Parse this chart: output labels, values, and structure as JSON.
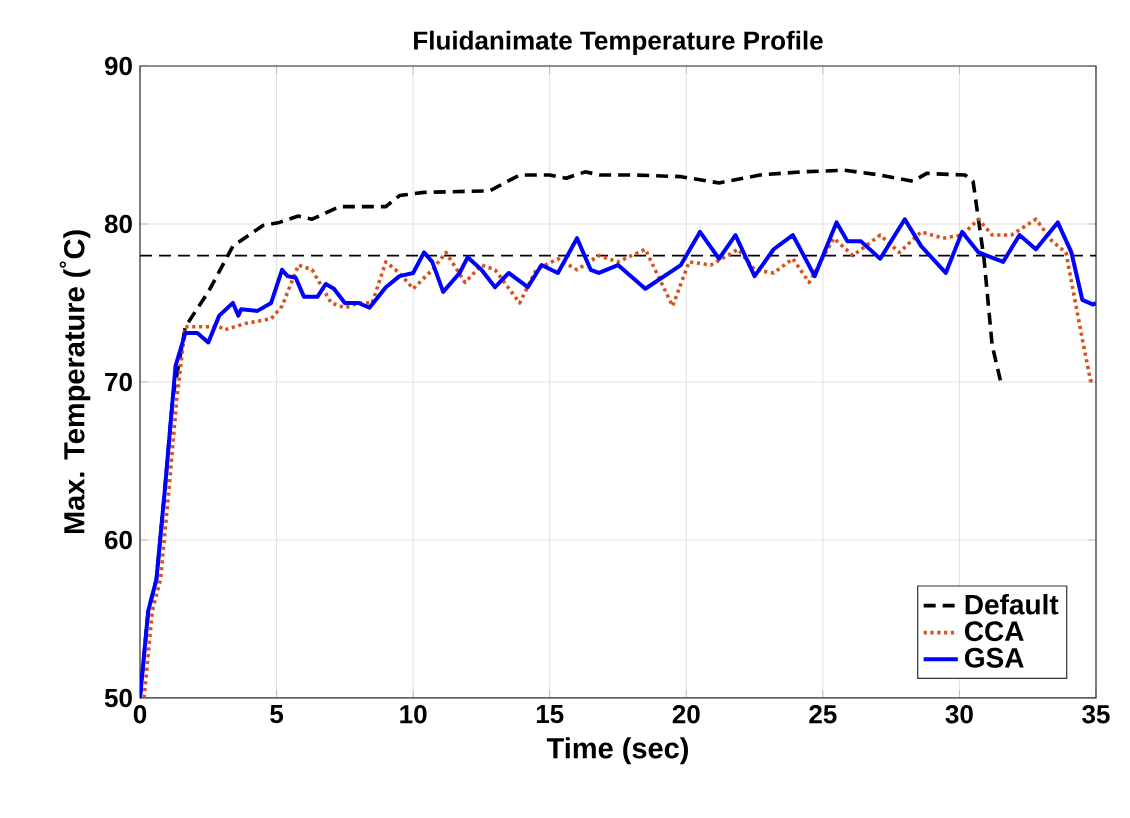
{
  "chart_data": {
    "type": "line",
    "title": "Fluidanimate Temperature Profile",
    "xlabel": "Time (sec)",
    "ylabel": "Max. Temperature ($^{°}$C)",
    "xlim": [
      0,
      35
    ],
    "ylim": [
      50,
      90
    ],
    "xticks": [
      0,
      5,
      10,
      15,
      20,
      25,
      30,
      35
    ],
    "yticks": [
      50,
      60,
      70,
      80,
      90
    ],
    "grid": true,
    "legend": "bottom right",
    "marker": "none",
    "ref_lines": [
      {
        "axis": "y",
        "value": 78,
        "color": "#000000",
        "line_style": "dashed"
      }
    ],
    "series": [
      {
        "name": "Default",
        "color": "#000000",
        "line_style": "dashed",
        "x": [
          0,
          0.3,
          0.6,
          0.9,
          1.2,
          1.66,
          2.5,
          3.4,
          4.5,
          5.1,
          5.8,
          6.3,
          7.3,
          9,
          9.5,
          10.4,
          12.8,
          13.9,
          15,
          15.6,
          16.3,
          16.84,
          18.06,
          19.77,
          21.2,
          22.7,
          24.2,
          25.8,
          27.1,
          28.3,
          28.8,
          30.2,
          30.5,
          30.9,
          31.2,
          31.5
        ],
        "values": [
          50,
          55.5,
          57.5,
          63,
          69,
          73.5,
          75.7,
          78.6,
          79.9,
          80.1,
          80.5,
          80.3,
          81.1,
          81.1,
          81.8,
          82,
          82.1,
          83.1,
          83.1,
          82.9,
          83.3,
          83.1,
          83.1,
          83,
          82.6,
          83.1,
          83.3,
          83.4,
          83.1,
          82.7,
          83.2,
          83.1,
          82.7,
          77.8,
          72.3,
          70.1
        ]
      },
      {
        "name": "CCA",
        "color": "#d95319",
        "line_style": "dotted",
        "x": [
          0.15,
          0.45,
          0.75,
          1.05,
          1.35,
          1.66,
          2.9,
          3.1,
          3.85,
          4.8,
          5.2,
          5.8,
          6.3,
          7,
          7.5,
          8,
          8.5,
          9,
          9.5,
          10,
          10.7,
          11.2,
          11.9,
          12.5,
          13,
          13.9,
          14.5,
          15.3,
          16,
          16.8,
          17.5,
          18.5,
          19.5,
          20.1,
          20.9,
          21.9,
          22.5,
          23.2,
          23.9,
          24.5,
          25.4,
          26.1,
          27.1,
          27.8,
          28.6,
          29.4,
          30.1,
          30.7,
          31.2,
          31.9,
          32.8,
          33.4,
          33.9,
          34.5,
          34.8,
          35
        ],
        "values": [
          50,
          55.5,
          57.5,
          63,
          69,
          73.5,
          73.5,
          73.3,
          73.7,
          74,
          74.8,
          77.4,
          77.1,
          75,
          74.7,
          75,
          75,
          77.6,
          76.9,
          75.9,
          77.1,
          78.2,
          76.3,
          77.4,
          77.1,
          75,
          77.1,
          77.8,
          77.1,
          78,
          77.6,
          78.4,
          74.8,
          77.6,
          77.4,
          78.4,
          77.1,
          76.9,
          77.8,
          76.3,
          79.1,
          78,
          79.3,
          78.2,
          79.5,
          79.1,
          79.3,
          80.3,
          79.3,
          79.3,
          80.3,
          78.9,
          78.2,
          72.7,
          70.1,
          70
        ]
      },
      {
        "name": "GSA",
        "color": "#0000ff",
        "line_style": "solid",
        "x": [
          0,
          0.3,
          0.6,
          0.9,
          1.3,
          1.66,
          2.1,
          2.5,
          2.9,
          3.4,
          3.6,
          3.7,
          4.3,
          4.8,
          5.2,
          5.4,
          5.7,
          6,
          6.5,
          6.8,
          7.1,
          7.5,
          8,
          8.4,
          9,
          9.5,
          10,
          10.4,
          10.7,
          11.1,
          11.7,
          12,
          12.5,
          13,
          13.5,
          14.2,
          14.7,
          15.3,
          16,
          16.5,
          16.8,
          17.5,
          18.5,
          19.8,
          20.5,
          21.2,
          21.8,
          22.5,
          23.2,
          23.9,
          24.7,
          25.5,
          25.9,
          26.4,
          27.1,
          28,
          28.6,
          29.5,
          30.1,
          30.7,
          31.6,
          32.2,
          32.8,
          33.6,
          34.1,
          34.5,
          34.9,
          35
        ],
        "values": [
          50,
          55.5,
          57.5,
          63,
          71,
          73.1,
          73.1,
          72.5,
          74.2,
          75,
          74.2,
          74.6,
          74.5,
          75,
          77.1,
          76.7,
          76.6,
          75.4,
          75.4,
          76.2,
          75.9,
          75,
          75,
          74.7,
          76,
          76.7,
          76.9,
          78.2,
          77.6,
          75.7,
          76.9,
          77.9,
          77.1,
          76,
          76.9,
          76,
          77.4,
          76.9,
          79.1,
          77.1,
          76.9,
          77.4,
          75.9,
          77.4,
          79.5,
          77.8,
          79.3,
          76.7,
          78.4,
          79.3,
          76.7,
          80.1,
          78.9,
          78.9,
          77.8,
          80.3,
          78.6,
          76.9,
          79.5,
          78.2,
          77.6,
          79.3,
          78.4,
          80.1,
          78.2,
          75.2,
          74.9,
          75
        ]
      }
    ]
  }
}
